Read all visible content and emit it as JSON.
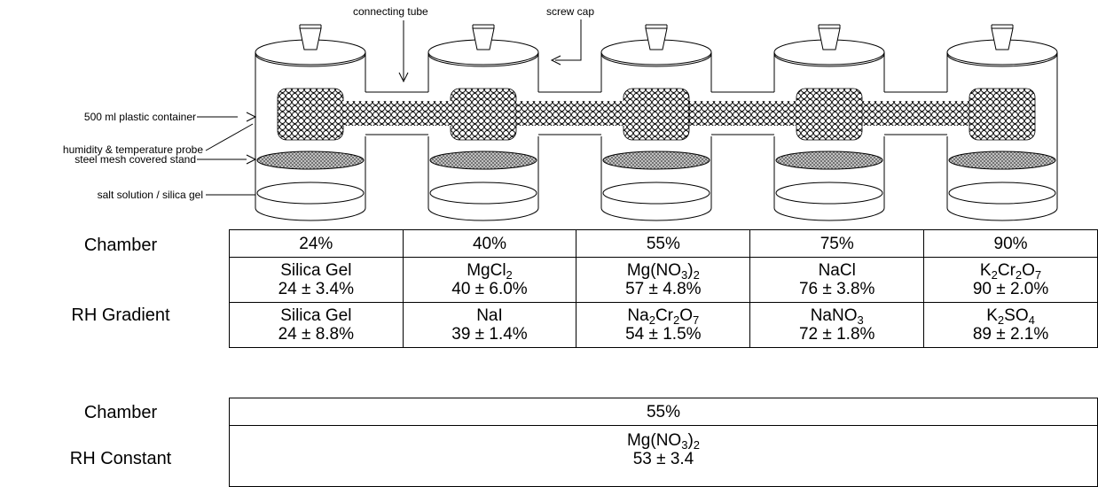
{
  "diagram": {
    "labels": {
      "probe": "humidity & temperature probe",
      "container": "500 ml plastic container",
      "stand": "steel mesh covered stand",
      "solution": "salt solution / silica gel",
      "tube": "connecting tube",
      "cap": "screw cap"
    }
  },
  "gradient": {
    "chamber_label": "Chamber",
    "rh_label": "RH Gradient",
    "chambers": [
      {
        "header": "24%",
        "row1": {
          "name": "Silica Gel",
          "value": "24 ± 3.4%"
        },
        "row2": {
          "name": "Silica Gel",
          "value": "24 ± 8.8%"
        }
      },
      {
        "header": "40%",
        "row1": {
          "name": "MgCl",
          "sub": "2",
          "value": "40 ± 6.0%"
        },
        "row2": {
          "name": "NaI",
          "value": "39 ± 1.4%"
        }
      },
      {
        "header": "55%",
        "row1": {
          "name": "Mg(NO",
          "sub": "3",
          "tail": ")",
          "sub2": "2",
          "value": "57 ± 4.8%"
        },
        "row2": {
          "name": "Na",
          "sub": "2",
          "tail": "Cr",
          "sub2": "2",
          "tail2": "O",
          "sub3": "7",
          "value": "54 ± 1.5%"
        }
      },
      {
        "header": "75%",
        "row1": {
          "name": "NaCl",
          "value": "76 ± 3.8%"
        },
        "row2": {
          "name": "NaNO",
          "sub": "3",
          "value": "72 ± 1.8%"
        }
      },
      {
        "header": "90%",
        "row1": {
          "name": "K",
          "sub": "2",
          "tail": "Cr",
          "sub2": "2",
          "tail2": "O",
          "sub3": "7",
          "value": "90 ± 2.0%"
        },
        "row2": {
          "name": "K",
          "sub": "2",
          "tail": "SO",
          "sub2": "4",
          "value": "89 ± 2.1%"
        }
      }
    ]
  },
  "constant": {
    "chamber_label": "Chamber",
    "rh_label": "RH Constant",
    "header": "55%",
    "name": "Mg(NO",
    "sub": "3",
    "tail": ")",
    "sub2": "2",
    "value": "53 ± 3.4"
  }
}
